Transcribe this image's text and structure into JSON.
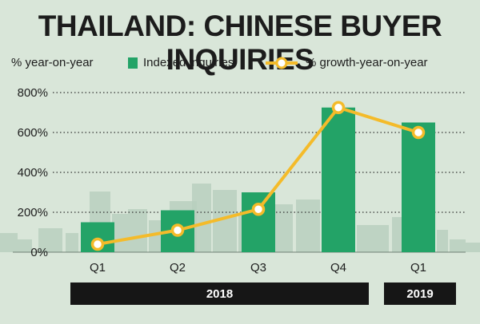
{
  "title": "THAILAND: CHINESE BUYER INQUIRIES",
  "legend": {
    "unit_label": "% year-on-year",
    "bar_label": "Indexed inquiries",
    "line_label": "% growth-year-on-year"
  },
  "colors": {
    "bar": "#23a367",
    "line": "#f4bb2a",
    "background": "#d9e6d9",
    "skyline": "#b9cfbe"
  },
  "chart_data": {
    "type": "bar",
    "categories": [
      "Q1",
      "Q2",
      "Q3",
      "Q4",
      "Q1"
    ],
    "year_groups": [
      {
        "label": "2018",
        "categories": [
          "Q1",
          "Q2",
          "Q3",
          "Q4"
        ]
      },
      {
        "label": "2019",
        "categories": [
          "Q1"
        ]
      }
    ],
    "series": [
      {
        "name": "Indexed inquiries",
        "type": "bar",
        "values": [
          150,
          210,
          300,
          725,
          650
        ]
      },
      {
        "name": "% growth-year-on-year",
        "type": "line",
        "values": [
          40,
          110,
          215,
          725,
          600
        ]
      }
    ],
    "yticks": [
      "0%",
      "200%",
      "400%",
      "600%",
      "800%"
    ],
    "ylim": [
      0,
      800
    ],
    "grid": true
  }
}
